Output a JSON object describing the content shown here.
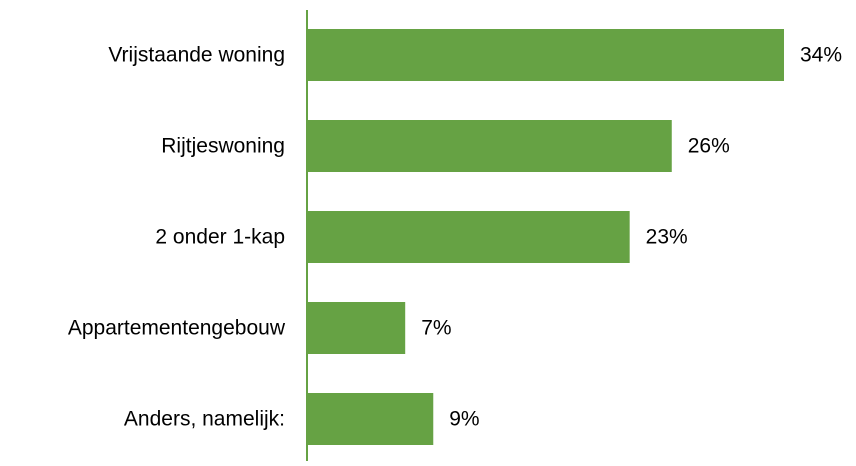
{
  "chart_data": {
    "type": "bar",
    "orientation": "horizontal",
    "categories": [
      "Vrijstaande woning",
      "Rijtjeswoning",
      "2 onder 1-kap",
      "Appartementengebouw",
      "Anders, namelijk:"
    ],
    "values": [
      34,
      26,
      23,
      7,
      9
    ],
    "value_labels": [
      "34%",
      "26%",
      "23%",
      "7%",
      "9%"
    ],
    "unit": "%",
    "xlim": [
      0,
      34
    ],
    "grid": false,
    "legend": "none",
    "colors": {
      "bar": "#66a244",
      "axis": "#66a244",
      "text": "#000000"
    }
  }
}
